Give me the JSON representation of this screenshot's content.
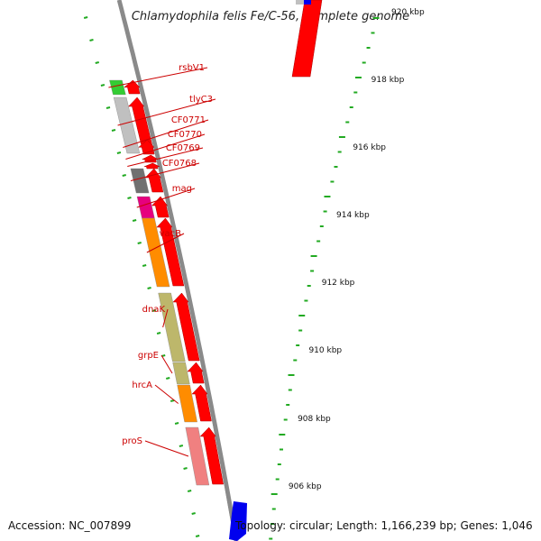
{
  "title": "Chlamydophila felis Fe/C-56, complete genome",
  "footer": {
    "accession": "Accession: NC_007899",
    "topology": "Topology: circular; Length: 1,166,239 bp; Genes: 1,046"
  },
  "colors": {
    "cds_red": "#ff0000",
    "backbone": "#8a8a8a",
    "tick_green": "#22aa22",
    "label_red": "#cc0000",
    "blue_feature": "#0000ee",
    "cog_gray_light": "#c0c0c0",
    "cog_gray_dark": "#707070",
    "cog_green": "#33cc33",
    "cog_magenta": "#e6007e",
    "cog_orange": "#ff8c00",
    "cog_olive": "#bdb76b",
    "cog_pink": "#f08080"
  },
  "kbp_ticks": [
    {
      "kbp": 906,
      "label": "906 kbp"
    },
    {
      "kbp": 908,
      "label": "908 kbp"
    },
    {
      "kbp": 910,
      "label": "910 kbp"
    },
    {
      "kbp": 912,
      "label": "912 kbp"
    },
    {
      "kbp": 914,
      "label": "914 kbp"
    },
    {
      "kbp": 916,
      "label": "916 kbp"
    },
    {
      "kbp": 918,
      "label": "918 kbp"
    },
    {
      "kbp": 920,
      "label": "920 kbp"
    }
  ],
  "genes": [
    {
      "name": "rsbV1",
      "cog": "cog_green"
    },
    {
      "name": "tlyC3",
      "cog": "cog_gray_light"
    },
    {
      "name": "CF0771",
      "cog": ""
    },
    {
      "name": "CF0770",
      "cog": ""
    },
    {
      "name": "CF0769",
      "cog": ""
    },
    {
      "name": "CF0768",
      "cog": "cog_gray_dark"
    },
    {
      "name": "mag",
      "cog": "cog_magenta"
    },
    {
      "name": "vacB",
      "cog": "cog_orange"
    },
    {
      "name": "dnaK",
      "cog": "cog_olive"
    },
    {
      "name": "grpE",
      "cog": "cog_olive"
    },
    {
      "name": "hrcA",
      "cog": "cog_orange"
    },
    {
      "name": "proS",
      "cog": "cog_pink"
    }
  ]
}
